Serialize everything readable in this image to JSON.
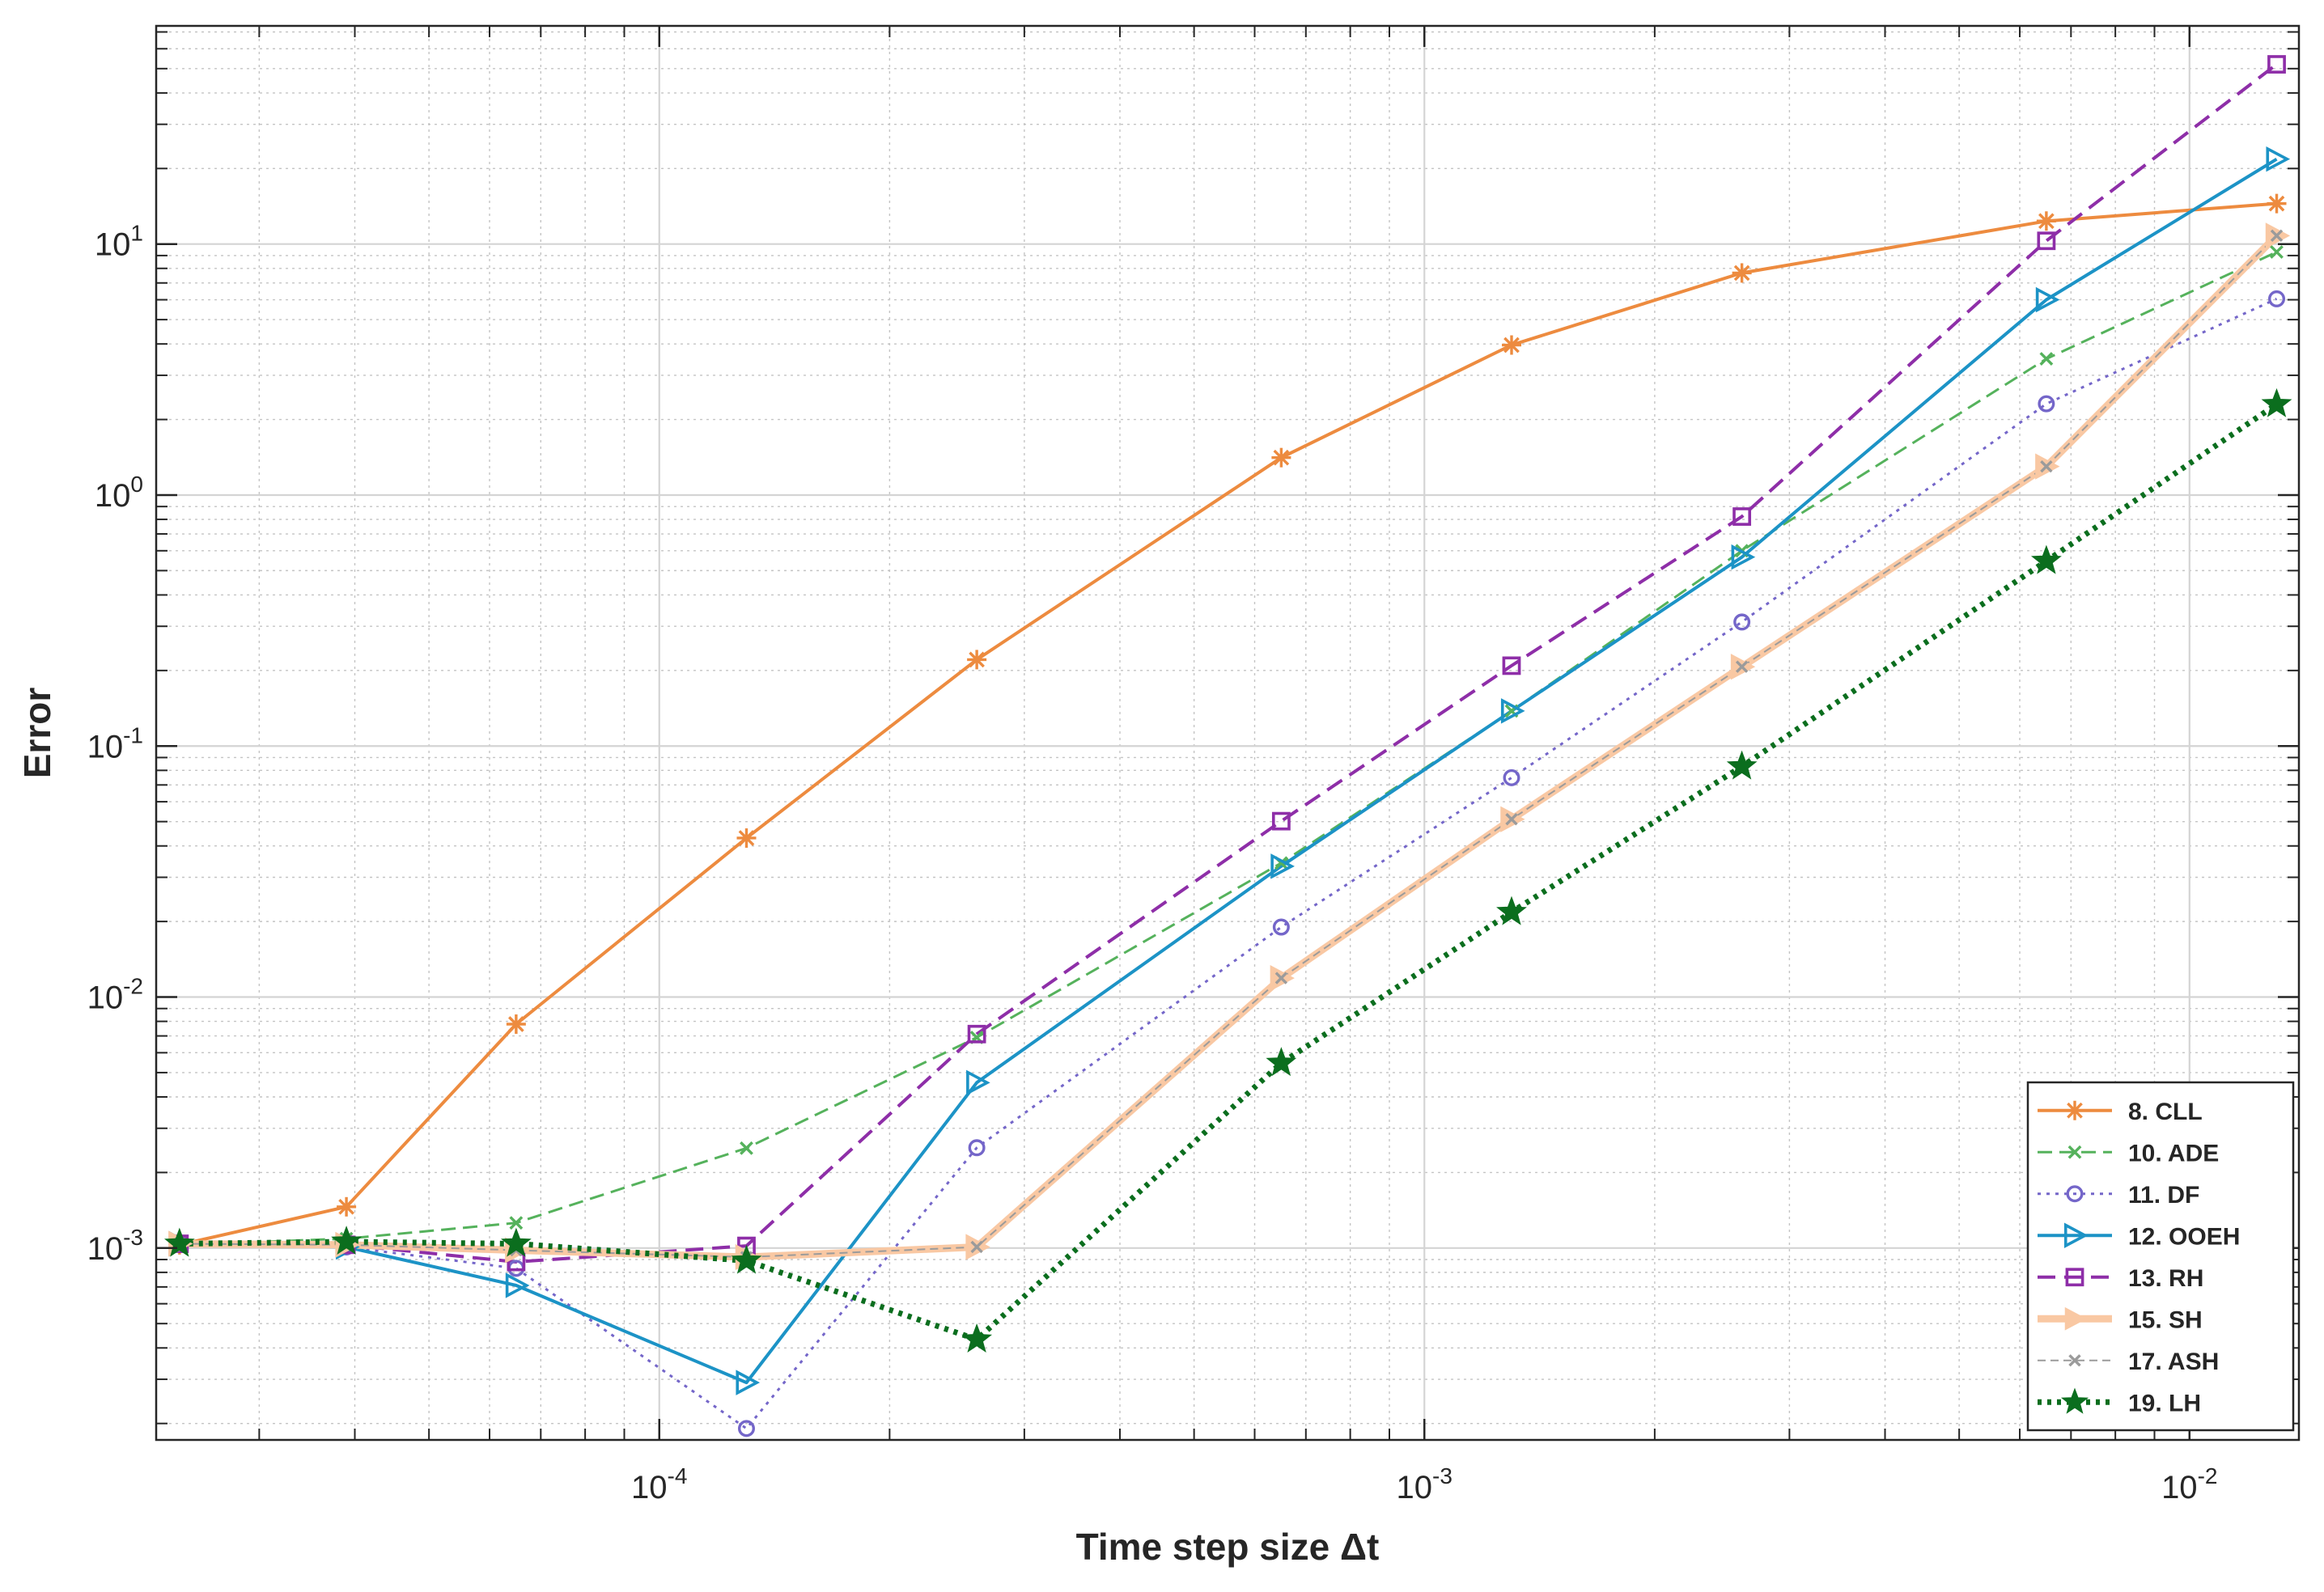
{
  "chart_data": {
    "type": "line",
    "title": "",
    "xlabel": "Time step size Δt",
    "ylabel": "Error",
    "xscale": "log",
    "yscale": "log",
    "xlim": [
      2.2e-05,
      0.0139
    ],
    "ylim": [
      0.000172,
      74
    ],
    "grid": true,
    "minor_grid": true,
    "legend_position": "bottom-right",
    "x_ticks": [
      {
        "value": 0.0001,
        "base": "10",
        "exp": "-4"
      },
      {
        "value": 0.001,
        "base": "10",
        "exp": "-3"
      },
      {
        "value": 0.01,
        "base": "10",
        "exp": "-2"
      }
    ],
    "y_ticks": [
      {
        "value": 0.001,
        "base": "10",
        "exp": "-3"
      },
      {
        "value": 0.01,
        "base": "10",
        "exp": "-2"
      },
      {
        "value": 0.1,
        "base": "10",
        "exp": "-1"
      },
      {
        "value": 1,
        "base": "10",
        "exp": "0"
      },
      {
        "value": 10,
        "base": "10",
        "exp": "1"
      }
    ],
    "x": [
      2.36e-05,
      3.9e-05,
      6.5e-05,
      0.00013,
      0.00026,
      0.00065,
      0.0013,
      0.0026,
      0.0065,
      0.013
    ],
    "series": [
      {
        "name": "8. CLL",
        "color": "#ED8B3F",
        "dash": "",
        "width": 4,
        "marker": "asterisk",
        "markerSize": 24,
        "values": [
          0.00103,
          0.00146,
          0.0078,
          0.043,
          0.221,
          1.41,
          3.96,
          7.67,
          12.35,
          14.5
        ]
      },
      {
        "name": "10. ADE",
        "color": "#55B25C",
        "dash": "18,9",
        "width": 3,
        "marker": "x",
        "markerSize": 20,
        "values": [
          0.00103,
          0.00109,
          0.00126,
          0.0025,
          0.0069,
          0.0342,
          0.138,
          0.6,
          3.49,
          9.3
        ]
      },
      {
        "name": "11. DF",
        "color": "#7466C9",
        "dash": "4,7",
        "width": 3,
        "marker": "circle",
        "markerSize": 22,
        "values": [
          0.00104,
          0.00101,
          0.00083,
          0.000191,
          0.00251,
          0.019,
          0.0748,
          0.312,
          2.31,
          6.05
        ]
      },
      {
        "name": "12. OOEH",
        "color": "#1C93C6",
        "dash": "",
        "width": 4,
        "marker": "triangle-right",
        "markerSize": 30,
        "values": [
          0.00104,
          0.00101,
          0.00071,
          0.000291,
          0.00456,
          0.0332,
          0.138,
          0.566,
          6.0,
          21.8
        ]
      },
      {
        "name": "13. RH",
        "color": "#8E2EA8",
        "dash": "22,11",
        "width": 4,
        "marker": "square",
        "markerSize": 24,
        "values": [
          0.00104,
          0.00103,
          0.00088,
          0.00102,
          0.00712,
          0.0502,
          0.209,
          0.821,
          10.3,
          52.0
        ]
      },
      {
        "name": "15. SH",
        "color": "#F9C8A3",
        "dash": "",
        "width": 9,
        "marker": "triangle-right-filled",
        "markerSize": 34,
        "values": [
          0.00104,
          0.00103,
          0.00098,
          0.00092,
          0.00101,
          0.0119,
          0.0511,
          0.207,
          1.3,
          10.8
        ]
      },
      {
        "name": "17. ASH",
        "color": "#9B9B9B",
        "dash": "10,6",
        "width": 2,
        "marker": "x",
        "markerSize": 18,
        "values": [
          0.00104,
          0.00103,
          0.00098,
          0.00092,
          0.00101,
          0.0119,
          0.0511,
          0.207,
          1.3,
          10.8
        ]
      },
      {
        "name": "19. LH",
        "color": "#0B6E1E",
        "dash": "5,7",
        "width": 7,
        "marker": "star",
        "markerSize": 34,
        "values": [
          0.00104,
          0.00106,
          0.00104,
          0.00089,
          0.000432,
          0.00546,
          0.0218,
          0.0829,
          0.546,
          2.3
        ]
      }
    ]
  }
}
